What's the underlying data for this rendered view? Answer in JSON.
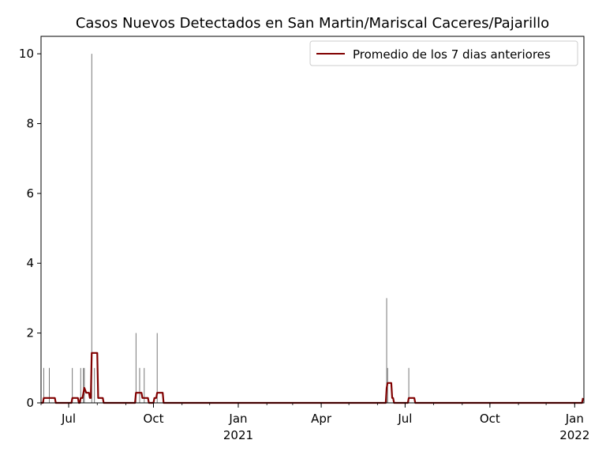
{
  "chart_data": {
    "type": "line",
    "title": "Casos Nuevos Detectados en San Martin/Mariscal Caceres/Pajarillo",
    "xlabel": "",
    "ylabel": "",
    "xlim": [
      "2020-06-01",
      "2022-01-11"
    ],
    "ylim": [
      0,
      10.5
    ],
    "grid": false,
    "legend_position": "top-right",
    "y_ticks": [
      "0",
      "2",
      "4",
      "6",
      "8",
      "10"
    ],
    "x_ticks": [
      {
        "date": "2020-07-01",
        "label": "Jul",
        "sublabel": ""
      },
      {
        "date": "2020-10-01",
        "label": "Oct",
        "sublabel": ""
      },
      {
        "date": "2021-01-01",
        "label": "Jan",
        "sublabel": "2021"
      },
      {
        "date": "2021-04-01",
        "label": "Apr",
        "sublabel": ""
      },
      {
        "date": "2021-07-01",
        "label": "Jul",
        "sublabel": ""
      },
      {
        "date": "2021-10-01",
        "label": "Oct",
        "sublabel": ""
      },
      {
        "date": "2022-01-01",
        "label": "Jan",
        "sublabel": "2022"
      }
    ],
    "series": [
      {
        "name": "",
        "kind": "daily-bars",
        "color": "#555555",
        "x": [
          "2020-06-04",
          "2020-06-10",
          "2020-07-05",
          "2020-07-14",
          "2020-07-17",
          "2020-07-18",
          "2020-07-26",
          "2020-07-29",
          "2020-09-12",
          "2020-09-16",
          "2020-09-21",
          "2020-10-05",
          "2021-06-11",
          "2021-06-12",
          "2021-07-05"
        ],
        "values": [
          1,
          1,
          1,
          1,
          1,
          1,
          10,
          1,
          2,
          1,
          1,
          2,
          3,
          1,
          1
        ]
      },
      {
        "name": "Promedio de los 7 dias anteriores",
        "kind": "line",
        "color": "#800000",
        "x": [
          "2020-06-01",
          "2020-06-03",
          "2020-06-04",
          "2020-06-09",
          "2020-06-10",
          "2020-06-16",
          "2020-06-17",
          "2020-07-04",
          "2020-07-05",
          "2020-07-11",
          "2020-07-12",
          "2020-07-13",
          "2020-07-14",
          "2020-07-16",
          "2020-07-17",
          "2020-07-18",
          "2020-07-20",
          "2020-07-23",
          "2020-07-24",
          "2020-07-25",
          "2020-07-26",
          "2020-08-01",
          "2020-08-02",
          "2020-08-07",
          "2020-08-08",
          "2020-09-11",
          "2020-09-12",
          "2020-09-18",
          "2020-09-19",
          "2020-09-25",
          "2020-09-26",
          "2020-10-01",
          "2020-10-02",
          "2020-10-04",
          "2020-10-05",
          "2020-10-11",
          "2020-10-12",
          "2021-06-10",
          "2021-06-11",
          "2021-06-12",
          "2021-06-16",
          "2021-06-17",
          "2021-06-18",
          "2021-06-19",
          "2021-07-04",
          "2021-07-05",
          "2021-07-11",
          "2021-07-12",
          "2022-01-09",
          "2022-01-10"
        ],
        "values": [
          0,
          0,
          0.14,
          0.14,
          0.14,
          0.14,
          0,
          0,
          0.14,
          0.14,
          0,
          0,
          0.14,
          0.14,
          0.29,
          0.43,
          0.29,
          0.29,
          0.14,
          0.14,
          1.43,
          1.43,
          0.14,
          0.14,
          0,
          0,
          0.29,
          0.29,
          0.14,
          0.14,
          0,
          0,
          0.14,
          0.14,
          0.29,
          0.29,
          0,
          0,
          0.43,
          0.57,
          0.57,
          0.14,
          0.14,
          0,
          0,
          0.14,
          0.14,
          0,
          0,
          0.14
        ]
      }
    ]
  }
}
